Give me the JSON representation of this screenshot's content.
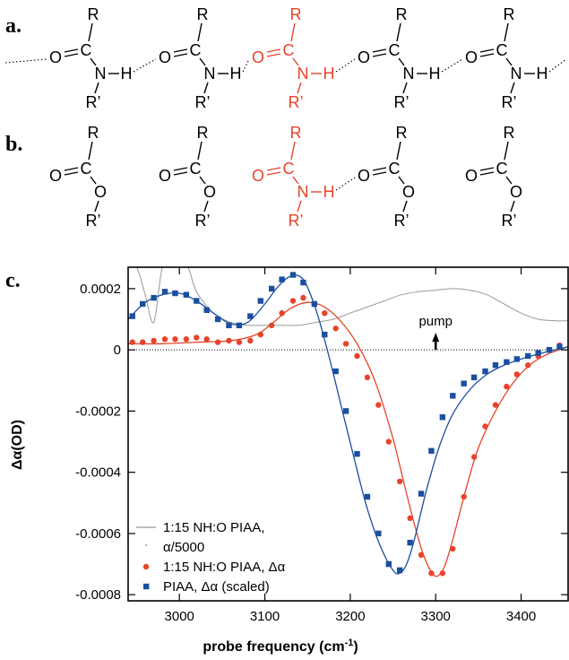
{
  "panels": {
    "a": "a.",
    "b": "b.",
    "c": "c."
  },
  "atoms": {
    "O": "O",
    "C": "C",
    "N": "N",
    "H": "H",
    "R": "R",
    "Rp": "R’"
  },
  "colors": {
    "black": "#000000",
    "highlight": "#e8432a",
    "blue": "#1a4fa0",
    "gray": "#999999"
  },
  "annotation": "pump",
  "chart_data": {
    "type": "line",
    "xlabel": "probe frequency (cm",
    "xlabel_sup": "-1",
    "xlabel_end": ")",
    "ylabel": "Δα(OD)",
    "xlim": [
      2940,
      3455
    ],
    "ylim": [
      -0.00082,
      0.00027
    ],
    "x_ticks": [
      3000,
      3100,
      3200,
      3300,
      3400
    ],
    "y_ticks": [
      0.0002,
      0,
      -0.0002,
      -0.0004,
      -0.0006,
      -0.0008
    ],
    "y_tick_labels": [
      "0.0002",
      "0",
      "-0.0002",
      "-0.0004",
      "-0.0006",
      "-0.0008"
    ],
    "pump_arrow": {
      "x": 3300,
      "y_from": 0,
      "y_to": 5e-05
    },
    "legend": [
      {
        "label": "1:15 NH:O PIAA,",
        "label2": "α/5000",
        "style": "line",
        "color": "#999999"
      },
      {
        "label": "1:15 NH:O PIAA, Δα",
        "style": "circle",
        "color": "#e8432a"
      },
      {
        "label": "PIAA, Δα (scaled)",
        "style": "square",
        "color": "#1a4fa0"
      }
    ],
    "series": [
      {
        "legend_index": 0,
        "kind": "line",
        "x": [
          2940,
          2950,
          2960,
          2970,
          2980,
          2990,
          3000,
          3010,
          3020,
          3040,
          3060,
          3080,
          3100,
          3120,
          3140,
          3160,
          3180,
          3200,
          3220,
          3240,
          3260,
          3280,
          3300,
          3320,
          3340,
          3360,
          3380,
          3400,
          3420,
          3440,
          3455
        ],
        "y": [
          0.00027,
          0.00027,
          0.00018,
          9e-05,
          0.00027,
          0.00027,
          0.00027,
          0.00027,
          0.00019,
          0.00012,
          9e-05,
          8e-05,
          8e-05,
          8e-05,
          8e-05,
          9e-05,
          0.0001,
          0.00012,
          0.00014,
          0.00016,
          0.00018,
          0.00019,
          0.000195,
          0.0002,
          0.000195,
          0.00018,
          0.00015,
          0.00012,
          0.0001,
          9.5e-05,
          9.5e-05
        ]
      },
      {
        "legend_index": 1,
        "kind": "circles",
        "x": [
          2945,
          2957,
          2970,
          2983,
          2995,
          3008,
          3020,
          3032,
          3045,
          3058,
          3070,
          3083,
          3095,
          3108,
          3120,
          3133,
          3145,
          3158,
          3170,
          3183,
          3195,
          3208,
          3220,
          3233,
          3245,
          3258,
          3270,
          3283,
          3295,
          3308,
          3320,
          3333,
          3345,
          3358,
          3370,
          3383,
          3395,
          3408,
          3420,
          3433,
          3445
        ],
        "y": [
          2.5e-05,
          2.5e-05,
          3e-05,
          3.5e-05,
          3.5e-05,
          3.5e-05,
          4e-05,
          3.5e-05,
          2.5e-05,
          3e-05,
          2.5e-05,
          3e-05,
          5e-05,
          8e-05,
          0.00012,
          0.00016,
          0.00017,
          0.00015,
          0.00012,
          7e-05,
          2e-05,
          -2e-05,
          -9e-05,
          -0.00018,
          -0.0003,
          -0.00043,
          -0.00055,
          -0.00067,
          -0.00073,
          -0.00073,
          -0.00065,
          -0.00048,
          -0.00035,
          -0.00025,
          -0.00018,
          -0.00012,
          -8e-05,
          -5e-05,
          -2e-05,
          0.0,
          1.5e-05
        ]
      },
      {
        "legend_index": 1,
        "kind": "fit",
        "x": [
          2940,
          2980,
          3020,
          3060,
          3090,
          3110,
          3130,
          3150,
          3170,
          3190,
          3210,
          3230,
          3250,
          3265,
          3280,
          3290,
          3300,
          3310,
          3320,
          3335,
          3350,
          3370,
          3390,
          3410,
          3430,
          3455
        ],
        "y": [
          2e-05,
          2e-05,
          2.5e-05,
          3e-05,
          5e-05,
          9e-05,
          0.000135,
          0.000155,
          0.00014,
          9e-05,
          1e-05,
          -0.00011,
          -0.00029,
          -0.00046,
          -0.00062,
          -0.0007,
          -0.00074,
          -0.00071,
          -0.00062,
          -0.00046,
          -0.00032,
          -0.0002,
          -0.00011,
          -5e-05,
          -1.5e-05,
          1e-05
        ]
      },
      {
        "legend_index": 2,
        "kind": "squares",
        "x": [
          2945,
          2957,
          2970,
          2983,
          2995,
          3008,
          3020,
          3032,
          3045,
          3058,
          3070,
          3083,
          3095,
          3108,
          3120,
          3133,
          3145,
          3158,
          3170,
          3183,
          3195,
          3208,
          3220,
          3233,
          3245,
          3258,
          3270,
          3283,
          3295,
          3308,
          3320,
          3333,
          3345,
          3358,
          3370,
          3383,
          3395,
          3408,
          3420,
          3433,
          3445
        ],
        "y": [
          0.00011,
          0.00015,
          0.00017,
          0.00019,
          0.000185,
          0.00018,
          0.00016,
          0.00013,
          0.0001,
          8e-05,
          8e-05,
          0.00011,
          0.00016,
          0.0002,
          0.00023,
          0.000245,
          0.00022,
          0.00015,
          5e-05,
          -7e-05,
          -0.0002,
          -0.00034,
          -0.00048,
          -0.0006,
          -0.0007,
          -0.00072,
          -0.00063,
          -0.00047,
          -0.00033,
          -0.00022,
          -0.00015,
          -0.00011,
          -9e-05,
          -7e-05,
          -5e-05,
          -4e-05,
          -3e-05,
          -2e-05,
          -1e-05,
          0.0,
          1e-05
        ]
      },
      {
        "legend_index": 2,
        "kind": "fit",
        "x": [
          2940,
          2960,
          2980,
          3000,
          3020,
          3040,
          3060,
          3080,
          3100,
          3115,
          3130,
          3145,
          3160,
          3175,
          3190,
          3205,
          3220,
          3235,
          3250,
          3258,
          3266,
          3275,
          3290,
          3305,
          3320,
          3340,
          3360,
          3380,
          3400,
          3425,
          3455
        ],
        "y": [
          0.0001,
          0.000155,
          0.00018,
          0.000185,
          0.00016,
          0.00012,
          8.5e-05,
          9e-05,
          0.00015,
          0.000205,
          0.00024,
          0.00023,
          0.00013,
          -2e-05,
          -0.00019,
          -0.00036,
          -0.00052,
          -0.00064,
          -0.00072,
          -0.00073,
          -0.0007,
          -0.00062,
          -0.00045,
          -0.00031,
          -0.00021,
          -0.00013,
          -8e-05,
          -5e-05,
          -3e-05,
          -1e-05,
          1e-05
        ]
      }
    ]
  }
}
